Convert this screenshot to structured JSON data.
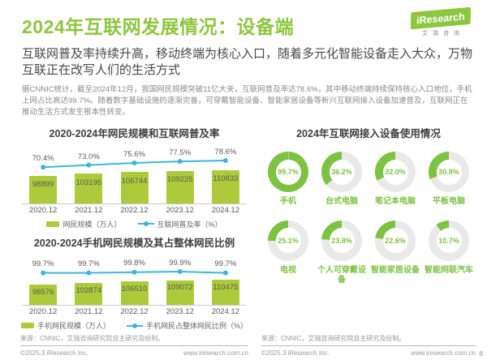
{
  "page": {
    "title": "2024年互联网发展情况：设备端",
    "subtitle": "互联网普及率持续升高，移动终端为核心入口，随着多元化智能设备走入大众，万物互联正在改写人们的生活方式",
    "body": "据CNNIC统计，截至2024年12月，我国网民规模突破11亿大关，互联网普及率达78.6%，其中移动终端持续保持核心入口地位，手机上网占比高达99.7%。随着数字基础设施的逐渐完善，可穿戴智能设备、智能家居设备等新兴互联网接入设备加速普及，互联网正在推动生活方式发生根本性转变。",
    "page_number": "8"
  },
  "logo": {
    "brand": "iResearch",
    "brand_cn": "艾瑞咨询"
  },
  "source_note": "来源：CNNIC，艾瑞咨询研究院自主研究及绘制。",
  "footer": {
    "copyright": "©2025.3 iResearch Inc.",
    "website": "www.iresearch.com.cn"
  },
  "colors": {
    "title_green": "#8dc63f",
    "bar_green": "#adca3a",
    "line_blue": "#3db5d8",
    "donut_green": "#7dc242",
    "donut_track": "#e9e9e9"
  },
  "chart_data": [
    {
      "type": "bar",
      "title": "2020-2024年网民规模和互联网普及率",
      "categories": [
        "2020.12",
        "2021.12",
        "2022.12",
        "2023.12",
        "2024.12"
      ],
      "series": [
        {
          "name": "网民规模（万人）",
          "type": "bar",
          "values": [
            98899,
            103195,
            106744,
            109225,
            110833
          ]
        },
        {
          "name": "互联网普及率（%）",
          "type": "line",
          "values": [
            70.4,
            73.0,
            75.6,
            77.5,
            78.6
          ]
        }
      ],
      "legend_position": "bottom",
      "grid": false
    },
    {
      "type": "bar",
      "title": "2020-2024手机网民规模及其占整体网民比例",
      "categories": [
        "2020.12",
        "2021.12",
        "2022.12",
        "2023.12",
        "2024.12"
      ],
      "series": [
        {
          "name": "手机网民规模（万人）",
          "type": "bar",
          "values": [
            98576,
            102874,
            106510,
            109072,
            110475
          ]
        },
        {
          "name": "手机网民占整体网民比例（%）",
          "type": "line",
          "values": [
            99.7,
            99.7,
            99.8,
            99.9,
            99.7
          ]
        }
      ],
      "legend_position": "bottom",
      "grid": false
    },
    {
      "type": "pie",
      "title": "2024年互联网接入设备使用情况",
      "items": [
        {
          "label": "手机",
          "value": 99.7
        },
        {
          "label": "台式电脑",
          "value": 36.2
        },
        {
          "label": "笔记本电脑",
          "value": 32.0
        },
        {
          "label": "平板电脑",
          "value": 30.8
        },
        {
          "label": "电视",
          "value": 25.1
        },
        {
          "label": "个人可穿戴设备",
          "value": 23.8
        },
        {
          "label": "智能家居设备",
          "value": 22.6
        },
        {
          "label": "智能网联汽车",
          "value": 10.7
        }
      ]
    }
  ]
}
